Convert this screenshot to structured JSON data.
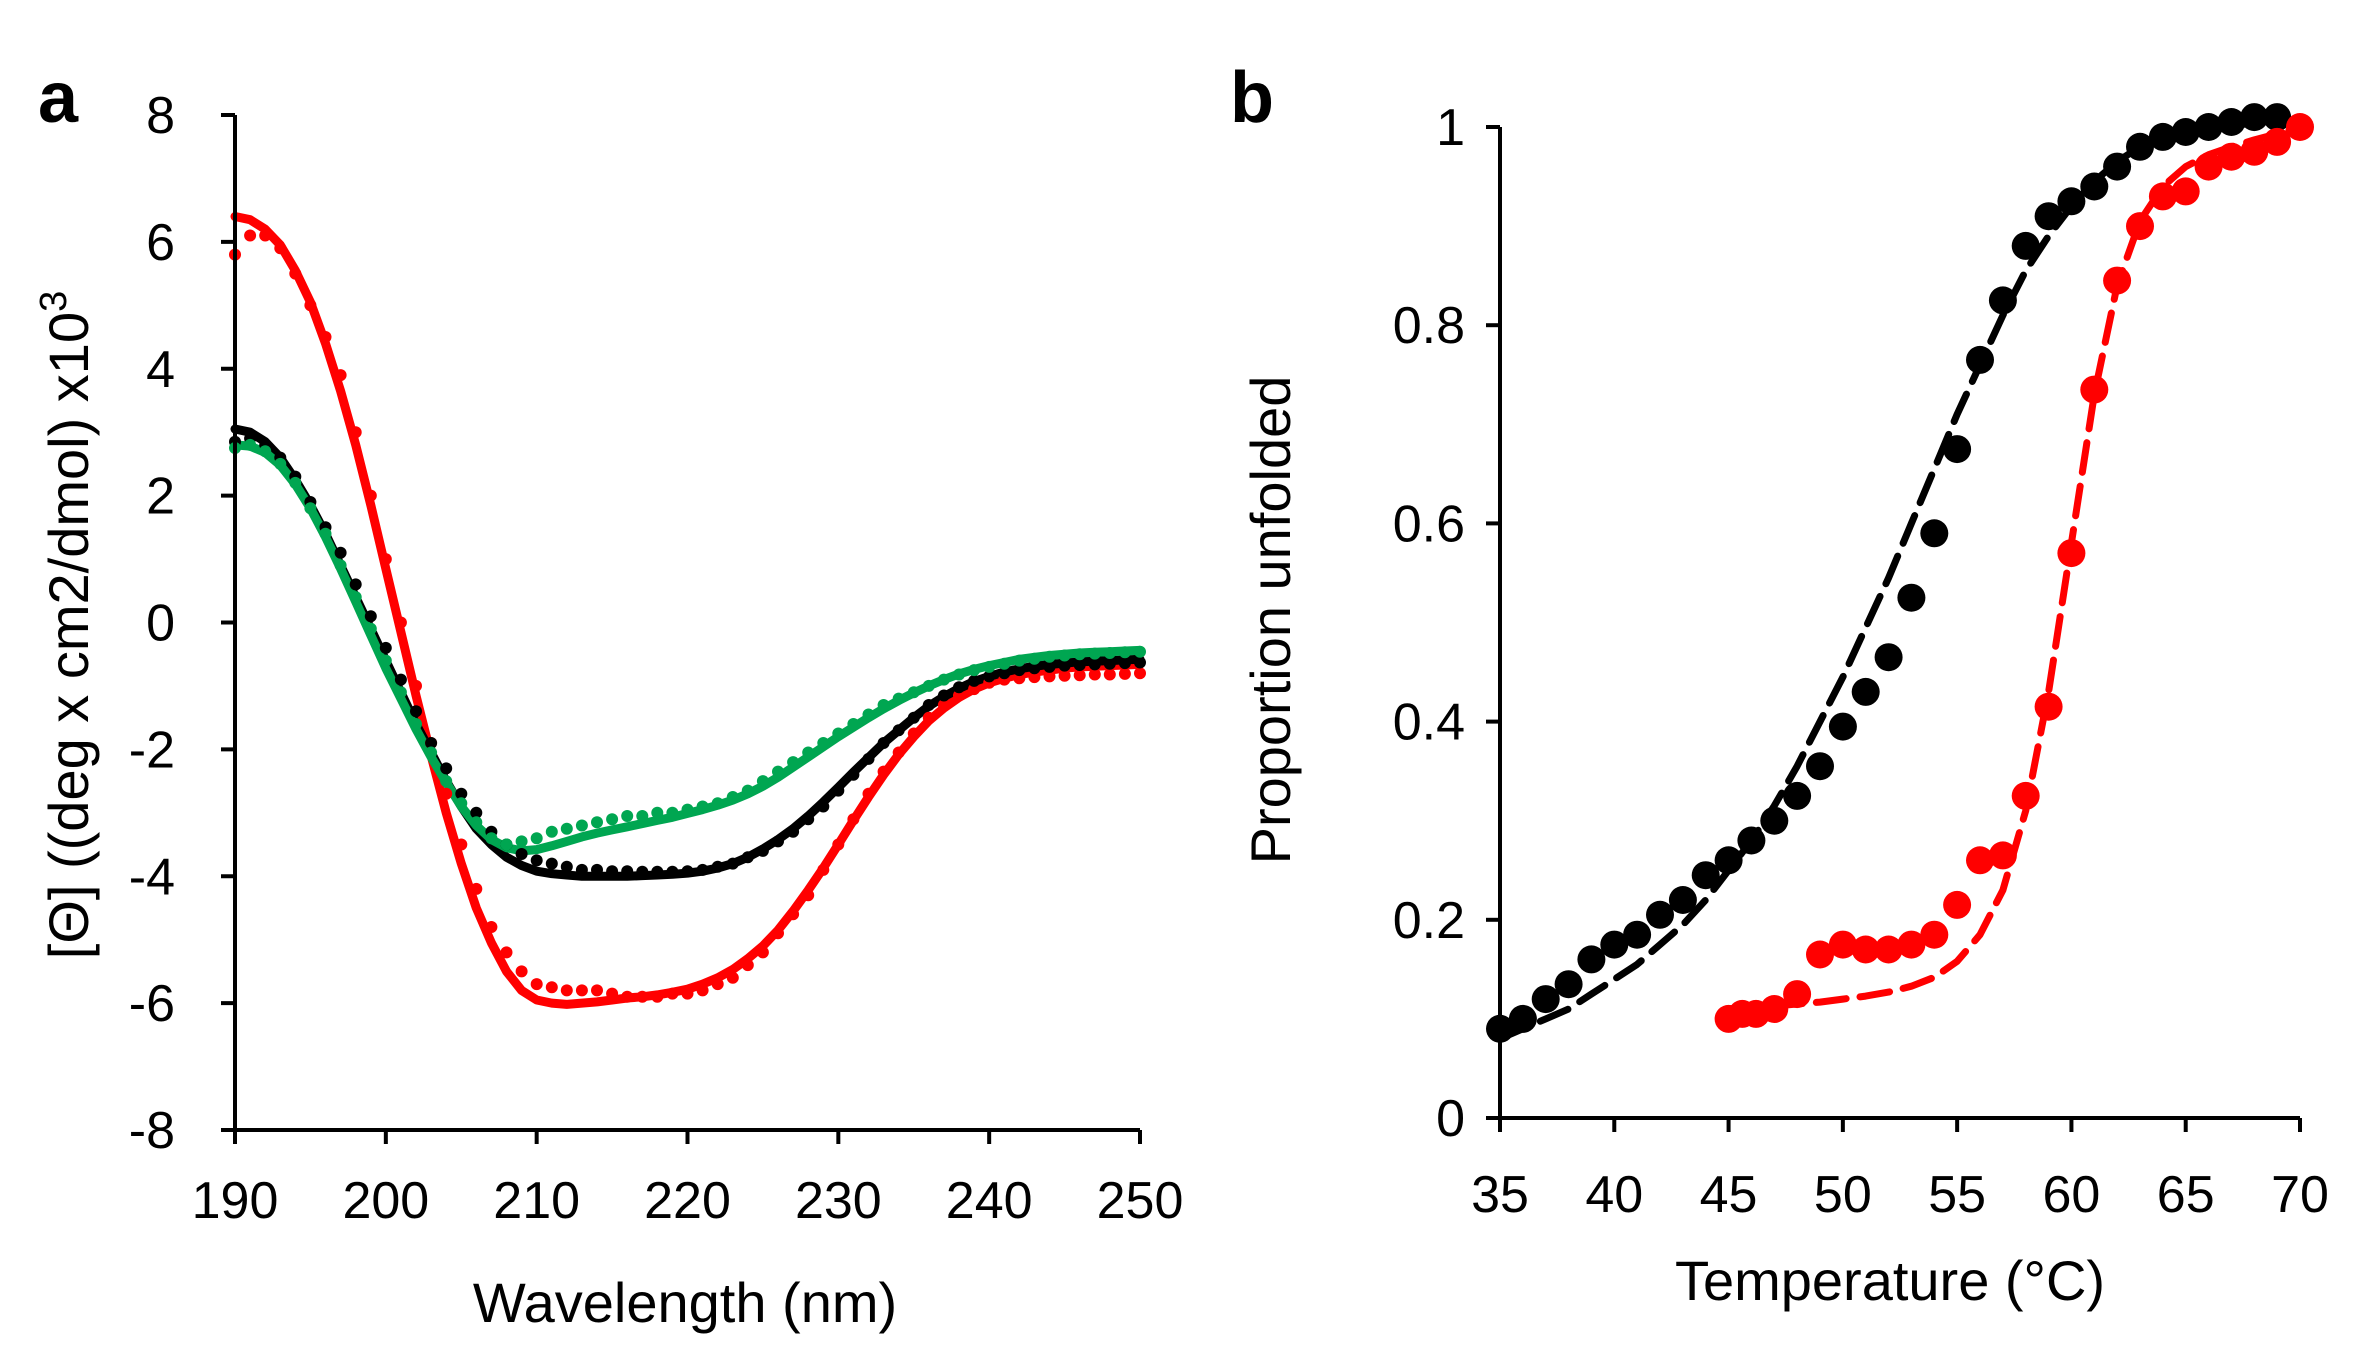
{
  "chart_data": [
    {
      "type": "line",
      "panel": "a",
      "xlabel": "Wavelength (nm)",
      "ylabel_parts": [
        "[Θ]  ((deg x cm2/dmol)  x10",
        "3"
      ],
      "xlim": [
        190,
        250
      ],
      "ylim": [
        -8,
        8
      ],
      "xticks": [
        190,
        200,
        210,
        220,
        230,
        240,
        250
      ],
      "yticks": [
        -8,
        -6,
        -4,
        -2,
        0,
        2,
        4,
        6,
        8
      ],
      "series": [
        {
          "name": "red",
          "color": "#ff0000",
          "points_x": [
            190,
            191,
            192,
            193,
            194,
            195,
            196,
            197,
            198,
            199,
            200,
            201,
            202,
            203,
            204,
            205,
            206,
            207,
            208,
            209,
            210,
            211,
            212,
            213,
            214,
            215,
            216,
            217,
            218,
            219,
            220,
            221,
            222,
            223,
            224,
            225,
            226,
            227,
            228,
            229,
            230,
            231,
            232,
            233,
            234,
            235,
            236,
            237,
            238,
            239,
            240,
            241,
            242,
            243,
            244,
            245,
            246,
            247,
            248,
            249,
            250
          ],
          "points_y": [
            5.8,
            6.1,
            6.1,
            5.9,
            5.5,
            5.0,
            4.5,
            3.9,
            3.0,
            2.0,
            1.0,
            0.0,
            -1.0,
            -1.9,
            -2.7,
            -3.5,
            -4.2,
            -4.8,
            -5.2,
            -5.5,
            -5.7,
            -5.75,
            -5.8,
            -5.8,
            -5.8,
            -5.85,
            -5.9,
            -5.9,
            -5.9,
            -5.85,
            -5.85,
            -5.8,
            -5.7,
            -5.6,
            -5.4,
            -5.2,
            -4.9,
            -4.6,
            -4.3,
            -3.9,
            -3.5,
            -3.1,
            -2.7,
            -2.35,
            -2.05,
            -1.75,
            -1.5,
            -1.3,
            -1.15,
            -1.05,
            -0.95,
            -0.9,
            -0.88,
            -0.86,
            -0.85,
            -0.84,
            -0.83,
            -0.82,
            -0.82,
            -0.81,
            -0.8
          ],
          "fit_x": [
            190,
            191,
            192,
            193,
            194,
            195,
            196,
            197,
            198,
            199,
            200,
            201,
            202,
            203,
            204,
            205,
            206,
            207,
            208,
            209,
            210,
            211,
            212,
            213,
            214,
            215,
            216,
            217,
            218,
            219,
            220,
            221,
            222,
            223,
            224,
            225,
            226,
            227,
            228,
            229,
            230,
            231,
            232,
            233,
            234,
            235,
            236,
            237,
            238,
            239,
            240,
            241,
            242,
            243,
            244,
            245,
            246,
            247,
            248,
            249,
            250
          ],
          "fit_y": [
            6.4,
            6.35,
            6.2,
            5.95,
            5.55,
            5.05,
            4.4,
            3.65,
            2.8,
            1.85,
            0.85,
            -0.15,
            -1.15,
            -2.1,
            -3.0,
            -3.8,
            -4.5,
            -5.05,
            -5.5,
            -5.8,
            -5.95,
            -6.0,
            -6.02,
            -6.0,
            -5.98,
            -5.95,
            -5.92,
            -5.9,
            -5.87,
            -5.83,
            -5.78,
            -5.7,
            -5.6,
            -5.47,
            -5.3,
            -5.1,
            -4.85,
            -4.55,
            -4.22,
            -3.87,
            -3.5,
            -3.12,
            -2.75,
            -2.4,
            -2.08,
            -1.8,
            -1.55,
            -1.35,
            -1.18,
            -1.05,
            -0.95,
            -0.88,
            -0.82,
            -0.78,
            -0.75,
            -0.72,
            -0.7,
            -0.69,
            -0.68,
            -0.67,
            -0.66
          ]
        },
        {
          "name": "black",
          "color": "#000000",
          "points_x": [
            190,
            191,
            192,
            193,
            194,
            195,
            196,
            197,
            198,
            199,
            200,
            201,
            202,
            203,
            204,
            205,
            206,
            207,
            208,
            209,
            210,
            211,
            212,
            213,
            214,
            215,
            216,
            217,
            218,
            219,
            220,
            221,
            222,
            223,
            224,
            225,
            226,
            227,
            228,
            229,
            230,
            231,
            232,
            233,
            234,
            235,
            236,
            237,
            238,
            239,
            240,
            241,
            242,
            243,
            244,
            245,
            246,
            247,
            248,
            249,
            250
          ],
          "points_y": [
            2.85,
            2.9,
            2.8,
            2.6,
            2.3,
            1.9,
            1.5,
            1.1,
            0.6,
            0.1,
            -0.4,
            -0.9,
            -1.4,
            -1.9,
            -2.3,
            -2.7,
            -3.0,
            -3.3,
            -3.5,
            -3.65,
            -3.75,
            -3.8,
            -3.85,
            -3.9,
            -3.9,
            -3.92,
            -3.92,
            -3.93,
            -3.93,
            -3.93,
            -3.92,
            -3.9,
            -3.85,
            -3.8,
            -3.7,
            -3.6,
            -3.45,
            -3.3,
            -3.1,
            -2.9,
            -2.65,
            -2.4,
            -2.15,
            -1.9,
            -1.7,
            -1.5,
            -1.3,
            -1.15,
            -1.02,
            -0.92,
            -0.85,
            -0.8,
            -0.75,
            -0.72,
            -0.7,
            -0.68,
            -0.67,
            -0.66,
            -0.65,
            -0.64,
            -0.63
          ],
          "fit_x": [
            190,
            191,
            192,
            193,
            194,
            195,
            196,
            197,
            198,
            199,
            200,
            201,
            202,
            203,
            204,
            205,
            206,
            207,
            208,
            209,
            210,
            211,
            212,
            213,
            214,
            215,
            216,
            217,
            218,
            219,
            220,
            221,
            222,
            223,
            224,
            225,
            226,
            227,
            228,
            229,
            230,
            231,
            232,
            233,
            234,
            235,
            236,
            237,
            238,
            239,
            240,
            241,
            242,
            243,
            244,
            245,
            246,
            247,
            248,
            249,
            250
          ],
          "fit_y": [
            3.05,
            3.0,
            2.85,
            2.6,
            2.25,
            1.85,
            1.4,
            0.9,
            0.4,
            -0.1,
            -0.6,
            -1.1,
            -1.6,
            -2.05,
            -2.5,
            -2.9,
            -3.25,
            -3.5,
            -3.7,
            -3.83,
            -3.92,
            -3.96,
            -3.98,
            -4.0,
            -4.0,
            -4.0,
            -4.0,
            -3.99,
            -3.98,
            -3.97,
            -3.95,
            -3.92,
            -3.87,
            -3.8,
            -3.7,
            -3.57,
            -3.42,
            -3.25,
            -3.05,
            -2.83,
            -2.6,
            -2.36,
            -2.13,
            -1.9,
            -1.7,
            -1.5,
            -1.32,
            -1.17,
            -1.04,
            -0.93,
            -0.85,
            -0.78,
            -0.73,
            -0.69,
            -0.66,
            -0.64,
            -0.62,
            -0.61,
            -0.6,
            -0.59,
            -0.58
          ]
        },
        {
          "name": "green",
          "color": "#00a651",
          "points_x": [
            190,
            191,
            192,
            193,
            194,
            195,
            196,
            197,
            198,
            199,
            200,
            201,
            202,
            203,
            204,
            205,
            206,
            207,
            208,
            209,
            210,
            211,
            212,
            213,
            214,
            215,
            216,
            217,
            218,
            219,
            220,
            221,
            222,
            223,
            224,
            225,
            226,
            227,
            228,
            229,
            230,
            231,
            232,
            233,
            234,
            235,
            236,
            237,
            238,
            239,
            240,
            241,
            242,
            243,
            244,
            245,
            246,
            247,
            248,
            249,
            250
          ],
          "points_y": [
            2.75,
            2.8,
            2.7,
            2.5,
            2.2,
            1.8,
            1.4,
            0.9,
            0.4,
            -0.1,
            -0.6,
            -1.1,
            -1.6,
            -2.05,
            -2.5,
            -2.85,
            -3.15,
            -3.4,
            -3.5,
            -3.45,
            -3.4,
            -3.3,
            -3.25,
            -3.2,
            -3.15,
            -3.1,
            -3.05,
            -3.05,
            -3.0,
            -3.0,
            -2.95,
            -2.9,
            -2.85,
            -2.75,
            -2.65,
            -2.5,
            -2.35,
            -2.2,
            -2.05,
            -1.9,
            -1.75,
            -1.6,
            -1.45,
            -1.3,
            -1.2,
            -1.1,
            -1.0,
            -0.9,
            -0.82,
            -0.75,
            -0.7,
            -0.65,
            -0.6,
            -0.57,
            -0.54,
            -0.52,
            -0.5,
            -0.49,
            -0.48,
            -0.47,
            -0.46
          ],
          "fit_x": [
            190,
            191,
            192,
            193,
            194,
            195,
            196,
            197,
            198,
            199,
            200,
            201,
            202,
            203,
            204,
            205,
            206,
            207,
            208,
            209,
            210,
            211,
            212,
            213,
            214,
            215,
            216,
            217,
            218,
            219,
            220,
            221,
            222,
            223,
            224,
            225,
            226,
            227,
            228,
            229,
            230,
            231,
            232,
            233,
            234,
            235,
            236,
            237,
            238,
            239,
            240,
            241,
            242,
            243,
            244,
            245,
            246,
            247,
            248,
            249,
            250
          ],
          "fit_y": [
            2.8,
            2.78,
            2.68,
            2.48,
            2.18,
            1.8,
            1.35,
            0.85,
            0.33,
            -0.2,
            -0.72,
            -1.2,
            -1.68,
            -2.12,
            -2.52,
            -2.9,
            -3.2,
            -3.42,
            -3.55,
            -3.6,
            -3.58,
            -3.52,
            -3.45,
            -3.38,
            -3.32,
            -3.27,
            -3.22,
            -3.17,
            -3.12,
            -3.07,
            -3.01,
            -2.95,
            -2.88,
            -2.8,
            -2.7,
            -2.58,
            -2.44,
            -2.28,
            -2.12,
            -1.96,
            -1.8,
            -1.65,
            -1.5,
            -1.36,
            -1.23,
            -1.11,
            -1.0,
            -0.9,
            -0.81,
            -0.74,
            -0.68,
            -0.63,
            -0.58,
            -0.55,
            -0.52,
            -0.5,
            -0.48,
            -0.47,
            -0.46,
            -0.45,
            -0.44
          ]
        }
      ]
    },
    {
      "type": "scatter",
      "panel": "b",
      "xlabel": "Temperature (°C)",
      "ylabel": "Proportion unfolded",
      "xlim": [
        35,
        70
      ],
      "ylim": [
        0,
        1
      ],
      "xticks": [
        35,
        40,
        45,
        50,
        55,
        60,
        65,
        70
      ],
      "yticks": [
        0,
        0.2,
        0.4,
        0.6,
        0.8,
        1
      ],
      "ytick_labels": [
        "0",
        "0.2",
        "0.4",
        "0.6",
        "0.8",
        "1"
      ],
      "series": [
        {
          "name": "black",
          "color": "#000000",
          "points_x": [
            35,
            36,
            37,
            38,
            39,
            40,
            41,
            42,
            43,
            44,
            45,
            46,
            47,
            48,
            49,
            50,
            51,
            52,
            53,
            54,
            55,
            56,
            57,
            58,
            59,
            60,
            61,
            62,
            63,
            64,
            65,
            66,
            67,
            68,
            69
          ],
          "points_y": [
            0.09,
            0.1,
            0.12,
            0.135,
            0.16,
            0.175,
            0.185,
            0.205,
            0.22,
            0.245,
            0.26,
            0.28,
            0.3,
            0.325,
            0.355,
            0.395,
            0.43,
            0.465,
            0.525,
            0.59,
            0.675,
            0.765,
            0.825,
            0.88,
            0.91,
            0.925,
            0.94,
            0.96,
            0.98,
            0.99,
            0.995,
            1.0,
            1.005,
            1.01,
            1.01
          ],
          "fit_x": [
            35,
            36,
            37,
            38,
            39,
            40,
            41,
            42,
            43,
            44,
            45,
            46,
            47,
            48,
            49,
            50,
            51,
            52,
            53,
            54,
            55,
            56,
            57,
            58,
            59,
            60,
            61,
            62,
            63,
            64,
            65,
            66,
            67,
            68,
            69
          ],
          "fit_y": [
            0.08,
            0.09,
            0.1,
            0.11,
            0.125,
            0.14,
            0.155,
            0.175,
            0.195,
            0.22,
            0.25,
            0.28,
            0.315,
            0.355,
            0.4,
            0.445,
            0.495,
            0.545,
            0.6,
            0.655,
            0.71,
            0.76,
            0.81,
            0.855,
            0.89,
            0.92,
            0.945,
            0.965,
            0.98,
            0.99,
            0.995,
            1.0,
            1.0,
            1.005,
            1.01
          ]
        },
        {
          "name": "red",
          "color": "#ff0000",
          "points_x": [
            45,
            45.6,
            46.2,
            47,
            48,
            49,
            50,
            51,
            52,
            53,
            54,
            55,
            56,
            57,
            58,
            59,
            60,
            61,
            62,
            63,
            64,
            65,
            66,
            67,
            68,
            69,
            70
          ],
          "points_y": [
            0.1,
            0.105,
            0.105,
            0.11,
            0.125,
            0.165,
            0.175,
            0.17,
            0.17,
            0.175,
            0.185,
            0.215,
            0.26,
            0.265,
            0.325,
            0.415,
            0.57,
            0.735,
            0.845,
            0.9,
            0.93,
            0.935,
            0.96,
            0.97,
            0.975,
            0.985,
            1.0
          ],
          "fit_x": [
            45,
            46,
            47,
            48,
            49,
            50,
            51,
            52,
            53,
            54,
            55,
            56,
            57,
            58,
            59,
            60,
            61,
            62,
            63,
            64,
            65,
            66,
            67,
            68,
            69,
            70
          ],
          "fit_y": [
            0.11,
            0.112,
            0.113,
            0.115,
            0.117,
            0.12,
            0.123,
            0.127,
            0.133,
            0.142,
            0.158,
            0.185,
            0.23,
            0.31,
            0.43,
            0.58,
            0.73,
            0.84,
            0.905,
            0.94,
            0.96,
            0.972,
            0.98,
            0.987,
            0.993,
            1.0
          ]
        }
      ]
    }
  ],
  "panel_labels": {
    "a": "a",
    "b": "b"
  }
}
